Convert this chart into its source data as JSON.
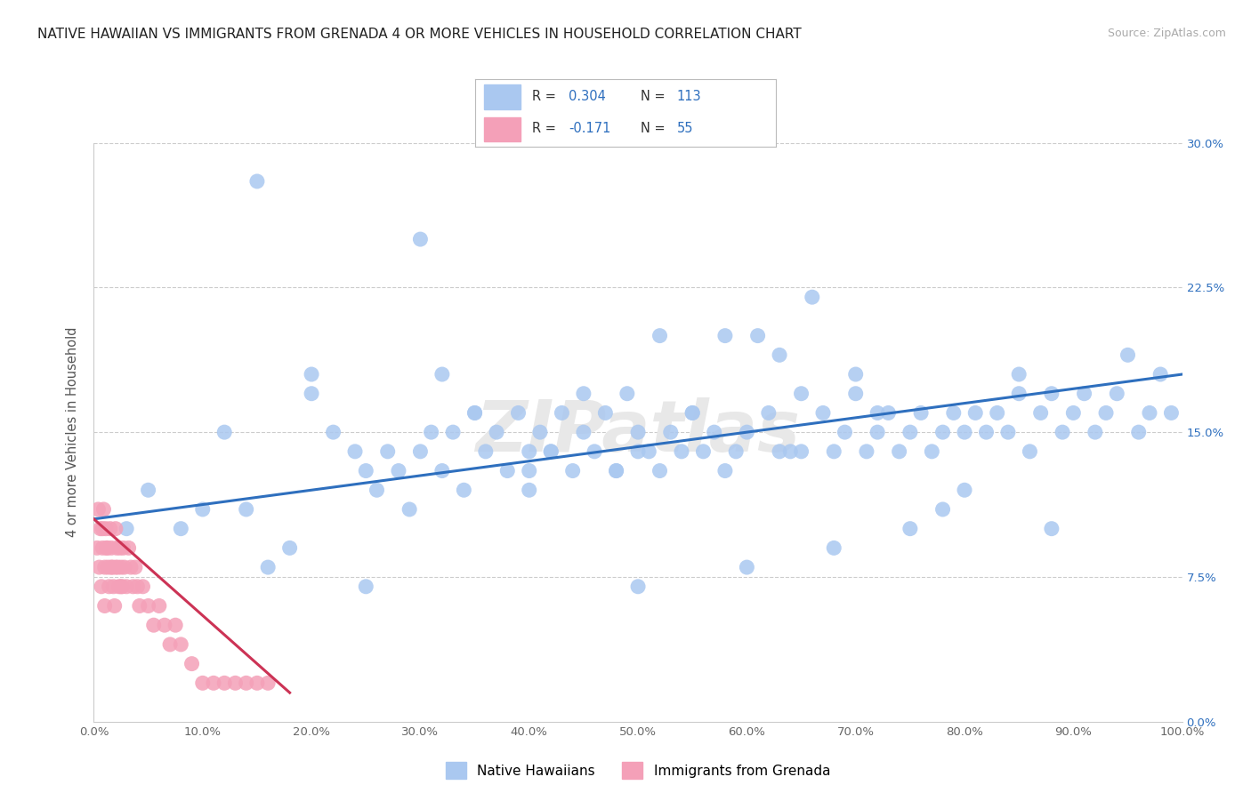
{
  "title": "NATIVE HAWAIIAN VS IMMIGRANTS FROM GRENADA 4 OR MORE VEHICLES IN HOUSEHOLD CORRELATION CHART",
  "source": "Source: ZipAtlas.com",
  "ylabel": "4 or more Vehicles in Household",
  "xlim": [
    0,
    100
  ],
  "ylim": [
    0,
    30
  ],
  "x_ticks": [
    0,
    10,
    20,
    30,
    40,
    50,
    60,
    70,
    80,
    90,
    100
  ],
  "y_ticks": [
    0,
    7.5,
    15,
    22.5,
    30
  ],
  "x_tick_labels": [
    "0.0%",
    "10.0%",
    "20.0%",
    "30.0%",
    "40.0%",
    "50.0%",
    "60.0%",
    "70.0%",
    "80.0%",
    "90.0%",
    "100.0%"
  ],
  "y_tick_labels": [
    "0.0%",
    "7.5%",
    "15.0%",
    "22.5%",
    "30.0%"
  ],
  "blue_R": 0.304,
  "blue_N": 113,
  "pink_R": -0.171,
  "pink_N": 55,
  "blue_scatter_color": "#aac8f0",
  "pink_scatter_color": "#f4a0b8",
  "blue_line_color": "#2e6fbe",
  "pink_line_color": "#cc3355",
  "legend_label_blue": "Native Hawaiians",
  "legend_label_pink": "Immigrants from Grenada",
  "title_color": "#222222",
  "source_color": "#aaaaaa",
  "stat_color": "#2e6fbe",
  "watermark": "ZIPatlas",
  "blue_x": [
    3,
    5,
    8,
    10,
    12,
    14,
    16,
    18,
    20,
    22,
    24,
    25,
    26,
    27,
    28,
    29,
    30,
    31,
    32,
    33,
    34,
    35,
    36,
    37,
    38,
    39,
    40,
    40,
    41,
    42,
    43,
    44,
    45,
    46,
    47,
    48,
    49,
    50,
    50,
    51,
    52,
    53,
    54,
    55,
    56,
    57,
    58,
    59,
    60,
    61,
    62,
    63,
    64,
    65,
    66,
    67,
    68,
    69,
    70,
    71,
    72,
    73,
    74,
    75,
    76,
    77,
    78,
    79,
    80,
    81,
    82,
    83,
    84,
    85,
    86,
    87,
    88,
    89,
    90,
    91,
    92,
    93,
    94,
    95,
    96,
    97,
    98,
    99,
    20,
    35,
    45,
    55,
    63,
    70,
    78,
    85,
    40,
    52,
    60,
    32,
    48,
    68,
    75,
    80,
    25,
    42,
    58,
    65,
    72,
    88,
    50,
    15,
    30
  ],
  "blue_y": [
    10,
    12,
    10,
    11,
    15,
    11,
    8,
    9,
    18,
    15,
    14,
    13,
    12,
    14,
    13,
    11,
    14,
    15,
    13,
    15,
    12,
    16,
    14,
    15,
    13,
    16,
    14,
    12,
    15,
    14,
    16,
    13,
    15,
    14,
    16,
    13,
    17,
    15,
    14,
    14,
    20,
    15,
    14,
    16,
    14,
    15,
    13,
    14,
    15,
    20,
    16,
    14,
    14,
    14,
    22,
    16,
    14,
    15,
    18,
    14,
    15,
    16,
    14,
    15,
    16,
    14,
    15,
    16,
    15,
    16,
    15,
    16,
    15,
    17,
    14,
    16,
    10,
    15,
    16,
    17,
    15,
    16,
    17,
    19,
    15,
    16,
    18,
    16,
    17,
    16,
    17,
    16,
    19,
    17,
    11,
    18,
    13,
    13,
    8,
    18,
    13,
    9,
    10,
    12,
    7,
    14,
    20,
    17,
    16,
    17,
    7,
    28,
    25
  ],
  "pink_x": [
    0.3,
    0.5,
    0.6,
    0.7,
    0.8,
    0.9,
    1.0,
    1.0,
    1.1,
    1.2,
    1.3,
    1.4,
    1.5,
    1.6,
    1.7,
    1.8,
    1.9,
    2.0,
    2.0,
    2.1,
    2.2,
    2.3,
    2.4,
    2.5,
    2.6,
    2.7,
    2.8,
    3.0,
    3.2,
    3.4,
    3.6,
    3.8,
    4.0,
    4.2,
    4.5,
    5.0,
    5.5,
    6.0,
    6.5,
    7.0,
    7.5,
    8.0,
    9.0,
    10.0,
    11.0,
    12.0,
    13.0,
    14.0,
    15.0,
    16.0,
    0.4,
    0.8,
    1.2,
    1.6,
    2.5
  ],
  "pink_y": [
    9,
    8,
    10,
    7,
    9,
    11,
    6,
    8,
    10,
    9,
    8,
    7,
    10,
    9,
    8,
    7,
    6,
    8,
    10,
    9,
    8,
    7,
    9,
    8,
    7,
    9,
    8,
    7,
    9,
    8,
    7,
    8,
    7,
    6,
    7,
    6,
    5,
    6,
    5,
    4,
    5,
    4,
    3,
    2,
    2,
    2,
    2,
    2,
    2,
    2,
    11,
    10,
    9,
    8,
    7
  ],
  "blue_trend_x": [
    0,
    100
  ],
  "blue_trend_y_start": 10.5,
  "blue_trend_y_end": 18.0,
  "pink_trend_x": [
    0,
    18
  ],
  "pink_trend_y_start": 10.5,
  "pink_trend_y_end": 1.5
}
